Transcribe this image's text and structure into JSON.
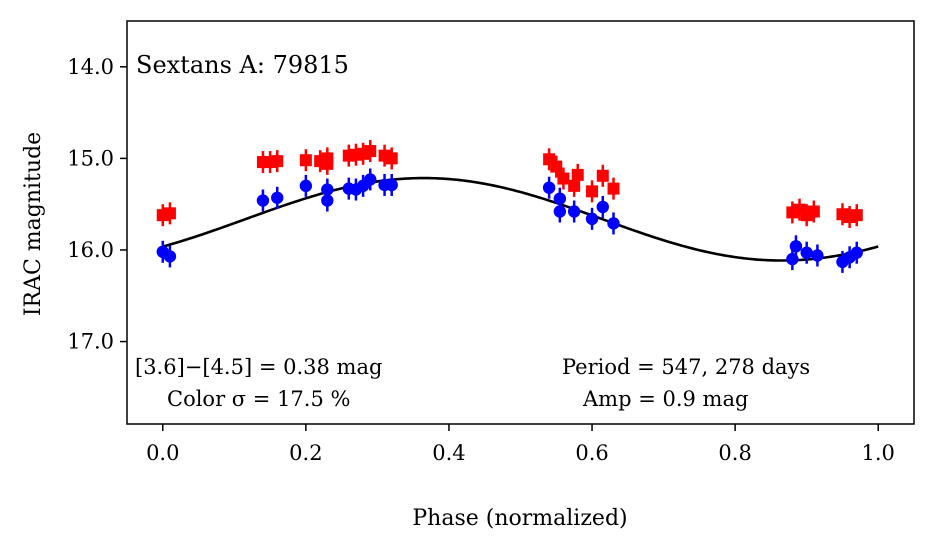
{
  "chart_data": {
    "type": "scatter",
    "title": "Sextans A: 79815",
    "xlabel": "Phase (normalized)",
    "ylabel": "IRAC magnitude",
    "xlim": [
      -0.05,
      1.05
    ],
    "ylim": [
      17.9,
      13.5
    ],
    "y_inverted": true,
    "x_ticks": [
      "0.0",
      "0.2",
      "0.4",
      "0.6",
      "0.8",
      "1.0"
    ],
    "x_tick_values": [
      0.0,
      0.2,
      0.4,
      0.6,
      0.8,
      1.0
    ],
    "y_ticks": [
      "14.0",
      "15.0",
      "16.0",
      "17.0"
    ],
    "y_tick_values": [
      14.0,
      15.0,
      16.0,
      17.0
    ],
    "grid": false,
    "legend": null,
    "annotations": {
      "color_diff": "[3.6]−[4.5] = 0.38 mag",
      "color_sigma": "Color σ = 17.5 %",
      "period": "Period = 547, 278 days",
      "amp": "Amp = 0.9 mag"
    },
    "series": [
      {
        "color": "#ff0000",
        "marker": "square",
        "points": [
          {
            "x": 0.0,
            "y": 15.62
          },
          {
            "x": 0.01,
            "y": 15.6
          },
          {
            "x": 0.14,
            "y": 15.04
          },
          {
            "x": 0.15,
            "y": 15.04
          },
          {
            "x": 0.16,
            "y": 15.03
          },
          {
            "x": 0.2,
            "y": 15.02
          },
          {
            "x": 0.22,
            "y": 15.03
          },
          {
            "x": 0.23,
            "y": 15.06
          },
          {
            "x": 0.23,
            "y": 15.0
          },
          {
            "x": 0.26,
            "y": 14.97
          },
          {
            "x": 0.27,
            "y": 14.96
          },
          {
            "x": 0.28,
            "y": 14.95
          },
          {
            "x": 0.29,
            "y": 14.92
          },
          {
            "x": 0.31,
            "y": 14.97
          },
          {
            "x": 0.32,
            "y": 15.0
          },
          {
            "x": 0.54,
            "y": 15.01
          },
          {
            "x": 0.55,
            "y": 15.09
          },
          {
            "x": 0.56,
            "y": 15.22
          },
          {
            "x": 0.575,
            "y": 15.3
          },
          {
            "x": 0.58,
            "y": 15.18
          },
          {
            "x": 0.6,
            "y": 15.36
          },
          {
            "x": 0.615,
            "y": 15.19
          },
          {
            "x": 0.63,
            "y": 15.33
          },
          {
            "x": 0.88,
            "y": 15.59
          },
          {
            "x": 0.89,
            "y": 15.56
          },
          {
            "x": 0.9,
            "y": 15.62
          },
          {
            "x": 0.91,
            "y": 15.58
          },
          {
            "x": 0.95,
            "y": 15.61
          },
          {
            "x": 0.96,
            "y": 15.64
          },
          {
            "x": 0.97,
            "y": 15.62
          }
        ]
      },
      {
        "color": "#0000ff",
        "marker": "circle",
        "points": [
          {
            "x": 0.0,
            "y": 16.02
          },
          {
            "x": 0.01,
            "y": 16.07
          },
          {
            "x": 0.14,
            "y": 15.46
          },
          {
            "x": 0.16,
            "y": 15.43
          },
          {
            "x": 0.2,
            "y": 15.3
          },
          {
            "x": 0.23,
            "y": 15.34
          },
          {
            "x": 0.23,
            "y": 15.46
          },
          {
            "x": 0.26,
            "y": 15.33
          },
          {
            "x": 0.27,
            "y": 15.34
          },
          {
            "x": 0.28,
            "y": 15.3
          },
          {
            "x": 0.29,
            "y": 15.23
          },
          {
            "x": 0.31,
            "y": 15.29
          },
          {
            "x": 0.32,
            "y": 15.29
          },
          {
            "x": 0.54,
            "y": 15.32
          },
          {
            "x": 0.555,
            "y": 15.44
          },
          {
            "x": 0.555,
            "y": 15.58
          },
          {
            "x": 0.575,
            "y": 15.58
          },
          {
            "x": 0.6,
            "y": 15.66
          },
          {
            "x": 0.615,
            "y": 15.53
          },
          {
            "x": 0.63,
            "y": 15.71
          },
          {
            "x": 0.88,
            "y": 16.1
          },
          {
            "x": 0.885,
            "y": 15.96
          },
          {
            "x": 0.9,
            "y": 16.03
          },
          {
            "x": 0.915,
            "y": 16.06
          },
          {
            "x": 0.95,
            "y": 16.13
          },
          {
            "x": 0.96,
            "y": 16.08
          },
          {
            "x": 0.97,
            "y": 16.03
          }
        ]
      }
    ],
    "fit_curve": {
      "color": "#000000",
      "mean": 15.665,
      "amplitude": 0.45,
      "peak_phase": 0.365
    }
  }
}
